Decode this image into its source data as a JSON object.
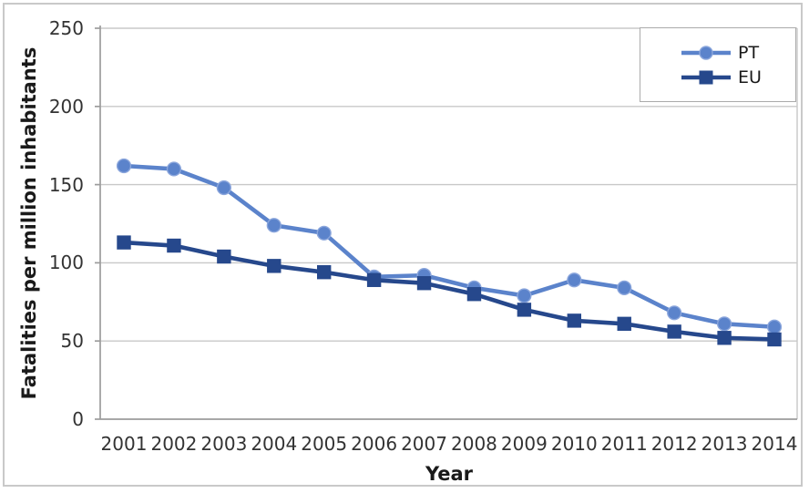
{
  "figure": {
    "background": "#ffffff",
    "border_color": "#c9c9c9"
  },
  "chart_data": {
    "type": "line",
    "title": "",
    "xlabel": "Year",
    "ylabel": "Fatalities per million inhabitants",
    "categories": [
      "2001",
      "2002",
      "2003",
      "2004",
      "2005",
      "2006",
      "2007",
      "2008",
      "2009",
      "2010",
      "2011",
      "2012",
      "2013",
      "2014"
    ],
    "yticks": [
      0,
      50,
      100,
      150,
      200,
      250
    ],
    "ylim": [
      0,
      250
    ],
    "grid": "horizontal",
    "legend_position": "top-right",
    "gridline_color": "#c8c8c8",
    "axis_color": "#9c9c9c",
    "tick_text_color": "#333333",
    "series": [
      {
        "name": "PT",
        "marker": "circle",
        "color": "#5b83cb",
        "marker_stroke": "#8ba6dc",
        "values": [
          162,
          160,
          148,
          124,
          119,
          91,
          92,
          84,
          79,
          89,
          84,
          68,
          61,
          59
        ]
      },
      {
        "name": "EU",
        "marker": "square",
        "color": "#26488c",
        "marker_stroke": "#26488c",
        "values": [
          113,
          111,
          104,
          98,
          94,
          89,
          87,
          80,
          70,
          63,
          61,
          56,
          52,
          51
        ]
      }
    ]
  }
}
